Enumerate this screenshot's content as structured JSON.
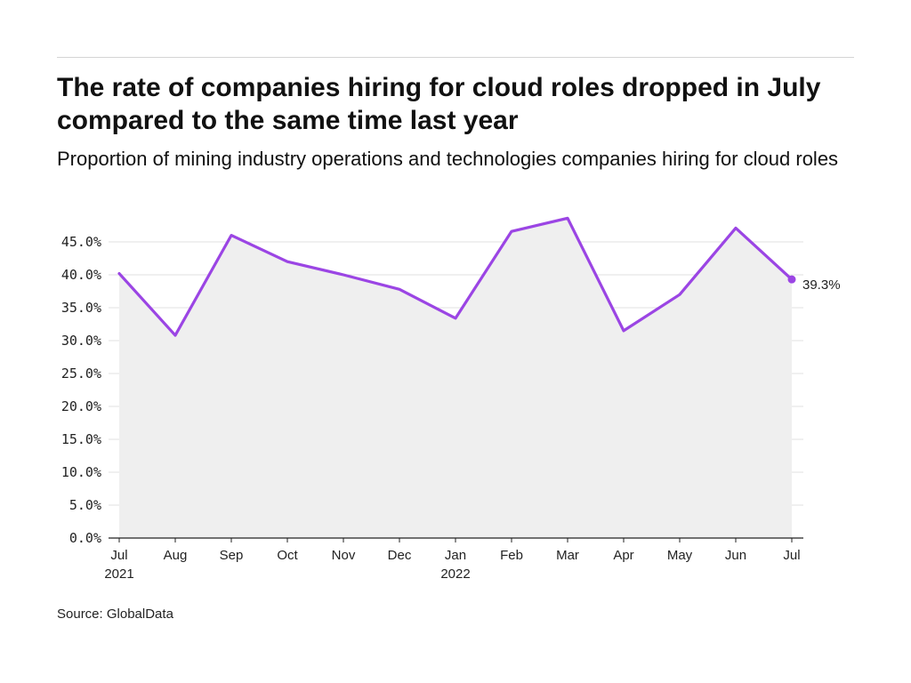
{
  "title": "The rate of companies hiring for cloud roles dropped in July compared to the same time last year",
  "subtitle": "Proportion of mining industry operations and technologies companies hiring for cloud roles",
  "source": "Source: GlobalData",
  "colors": {
    "line": "#9b45e4",
    "area": "#efefef",
    "grid": "#e0e0e0",
    "axis": "#222222"
  },
  "chart_data": {
    "type": "area",
    "title": "The rate of companies hiring for cloud roles dropped in July compared to the same time last year",
    "subtitle": "Proportion of mining industry operations and technologies companies hiring for cloud roles",
    "xlabel": "",
    "ylabel": "",
    "categories": [
      "Jul",
      "Aug",
      "Sep",
      "Oct",
      "Nov",
      "Dec",
      "Jan",
      "Feb",
      "Mar",
      "Apr",
      "May",
      "Jun",
      "Jul"
    ],
    "year_labels": [
      "2021",
      "",
      "",
      "",
      "",
      "",
      "2022",
      "",
      "",
      "",
      "",
      "",
      ""
    ],
    "series": [
      {
        "values": [
          40.2,
          30.8,
          46.0,
          42.0,
          40.0,
          37.8,
          33.4,
          46.6,
          48.6,
          31.5,
          37.0,
          47.1,
          39.3
        ]
      }
    ],
    "ylim": [
      0,
      45
    ],
    "y_ticks": [
      0,
      5,
      10,
      15,
      20,
      25,
      30,
      35,
      40,
      45
    ],
    "y_tick_labels": [
      "0.0%",
      "5.0%",
      "10.0%",
      "15.0%",
      "20.0%",
      "25.0%",
      "30.0%",
      "35.0%",
      "40.0%",
      "45.0%"
    ],
    "end_label": "39.3%",
    "grid": true,
    "legend": "none"
  }
}
